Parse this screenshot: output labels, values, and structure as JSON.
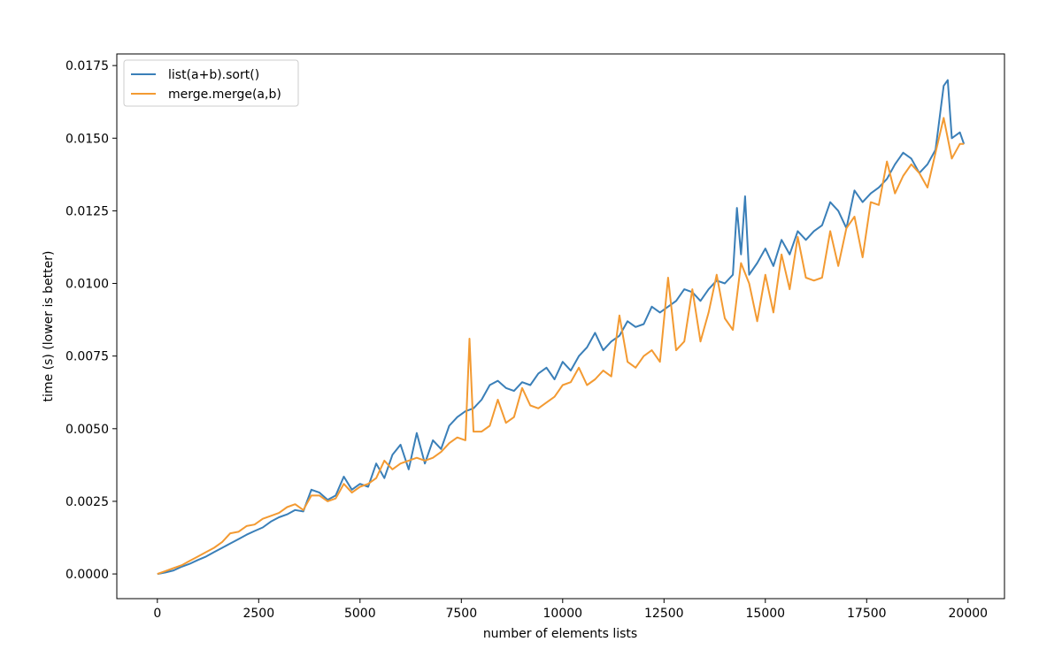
{
  "chart_data": {
    "type": "line",
    "title": "",
    "xlabel": "number of elements lists",
    "ylabel": "time (s) (lower is better)",
    "xlim": [
      -1000,
      20900
    ],
    "ylim": [
      -0.00085,
      0.0179
    ],
    "xticks": [
      0,
      2500,
      5000,
      7500,
      10000,
      12500,
      15000,
      17500,
      20000
    ],
    "xtick_labels": [
      "0",
      "2500",
      "5000",
      "7500",
      "10000",
      "12500",
      "15000",
      "17500",
      "20000"
    ],
    "yticks": [
      0,
      0.0025,
      0.005,
      0.0075,
      0.01,
      0.0125,
      0.015,
      0.0175
    ],
    "ytick_labels": [
      "0.0000",
      "0.0025",
      "0.0050",
      "0.0075",
      "0.0100",
      "0.0125",
      "0.0150",
      "0.0175"
    ],
    "grid": false,
    "legend_placement": "top-left",
    "series": [
      {
        "name": "list(a+b).sort()",
        "color": "#3a7fb8",
        "points": [
          [
            0,
            0
          ],
          [
            200,
            5e-05
          ],
          [
            400,
            0.00012
          ],
          [
            600,
            0.00025
          ],
          [
            800,
            0.00035
          ],
          [
            1000,
            0.00048
          ],
          [
            1200,
            0.0006
          ],
          [
            1400,
            0.00075
          ],
          [
            1600,
            0.0009
          ],
          [
            1800,
            0.00105
          ],
          [
            2000,
            0.0012
          ],
          [
            2200,
            0.00135
          ],
          [
            2400,
            0.00148
          ],
          [
            2600,
            0.0016
          ],
          [
            2800,
            0.0018
          ],
          [
            3000,
            0.00195
          ],
          [
            3200,
            0.00205
          ],
          [
            3400,
            0.0022
          ],
          [
            3600,
            0.00215
          ],
          [
            3800,
            0.0029
          ],
          [
            4000,
            0.0028
          ],
          [
            4200,
            0.00255
          ],
          [
            4400,
            0.0027
          ],
          [
            4600,
            0.00335
          ],
          [
            4800,
            0.0029
          ],
          [
            5000,
            0.0031
          ],
          [
            5200,
            0.003
          ],
          [
            5400,
            0.0038
          ],
          [
            5600,
            0.0033
          ],
          [
            5800,
            0.0041
          ],
          [
            6000,
            0.00445
          ],
          [
            6200,
            0.0036
          ],
          [
            6400,
            0.00485
          ],
          [
            6600,
            0.0038
          ],
          [
            6800,
            0.0046
          ],
          [
            7000,
            0.0043
          ],
          [
            7200,
            0.0051
          ],
          [
            7400,
            0.0054
          ],
          [
            7600,
            0.0056
          ],
          [
            7800,
            0.0057
          ],
          [
            8000,
            0.006
          ],
          [
            8200,
            0.0065
          ],
          [
            8400,
            0.00665
          ],
          [
            8600,
            0.0064
          ],
          [
            8800,
            0.0063
          ],
          [
            9000,
            0.0066
          ],
          [
            9200,
            0.0065
          ],
          [
            9400,
            0.0069
          ],
          [
            9600,
            0.0071
          ],
          [
            9800,
            0.0067
          ],
          [
            10000,
            0.0073
          ],
          [
            10200,
            0.007
          ],
          [
            10400,
            0.0075
          ],
          [
            10600,
            0.0078
          ],
          [
            10800,
            0.0083
          ],
          [
            11000,
            0.0077
          ],
          [
            11200,
            0.008
          ],
          [
            11400,
            0.0082
          ],
          [
            11600,
            0.0087
          ],
          [
            11800,
            0.0085
          ],
          [
            12000,
            0.0086
          ],
          [
            12200,
            0.0092
          ],
          [
            12400,
            0.009
          ],
          [
            12600,
            0.0092
          ],
          [
            12800,
            0.0094
          ],
          [
            13000,
            0.0098
          ],
          [
            13200,
            0.0097
          ],
          [
            13400,
            0.0094
          ],
          [
            13600,
            0.0098
          ],
          [
            13800,
            0.0101
          ],
          [
            14000,
            0.01
          ],
          [
            14200,
            0.0103
          ],
          [
            14300,
            0.0126
          ],
          [
            14400,
            0.011
          ],
          [
            14500,
            0.013
          ],
          [
            14600,
            0.0103
          ],
          [
            14800,
            0.0107
          ],
          [
            15000,
            0.0112
          ],
          [
            15200,
            0.0106
          ],
          [
            15400,
            0.0115
          ],
          [
            15600,
            0.011
          ],
          [
            15800,
            0.0118
          ],
          [
            16000,
            0.0115
          ],
          [
            16200,
            0.0118
          ],
          [
            16400,
            0.012
          ],
          [
            16600,
            0.0128
          ],
          [
            16800,
            0.0125
          ],
          [
            17000,
            0.0119
          ],
          [
            17200,
            0.0132
          ],
          [
            17400,
            0.0128
          ],
          [
            17600,
            0.0131
          ],
          [
            17800,
            0.0133
          ],
          [
            18000,
            0.0136
          ],
          [
            18200,
            0.0141
          ],
          [
            18400,
            0.0145
          ],
          [
            18600,
            0.0143
          ],
          [
            18800,
            0.0138
          ],
          [
            19000,
            0.0141
          ],
          [
            19200,
            0.0146
          ],
          [
            19400,
            0.0168
          ],
          [
            19500,
            0.017
          ],
          [
            19600,
            0.015
          ],
          [
            19800,
            0.0152
          ],
          [
            19900,
            0.0148
          ]
        ]
      },
      {
        "name": "merge.merge(a,b)",
        "color": "#f39a32",
        "points": [
          [
            0,
            0
          ],
          [
            200,
            0.0001
          ],
          [
            400,
            0.0002
          ],
          [
            600,
            0.0003
          ],
          [
            800,
            0.00045
          ],
          [
            1000,
            0.0006
          ],
          [
            1200,
            0.00075
          ],
          [
            1400,
            0.0009
          ],
          [
            1600,
            0.0011
          ],
          [
            1800,
            0.0014
          ],
          [
            2000,
            0.00145
          ],
          [
            2200,
            0.00165
          ],
          [
            2400,
            0.0017
          ],
          [
            2600,
            0.0019
          ],
          [
            2800,
            0.002
          ],
          [
            3000,
            0.0021
          ],
          [
            3200,
            0.0023
          ],
          [
            3400,
            0.0024
          ],
          [
            3600,
            0.0022
          ],
          [
            3800,
            0.0027
          ],
          [
            4000,
            0.0027
          ],
          [
            4200,
            0.0025
          ],
          [
            4400,
            0.0026
          ],
          [
            4600,
            0.0031
          ],
          [
            4800,
            0.0028
          ],
          [
            5000,
            0.003
          ],
          [
            5200,
            0.0031
          ],
          [
            5400,
            0.0033
          ],
          [
            5600,
            0.0039
          ],
          [
            5800,
            0.0036
          ],
          [
            6000,
            0.0038
          ],
          [
            6200,
            0.0039
          ],
          [
            6400,
            0.004
          ],
          [
            6600,
            0.0039
          ],
          [
            6800,
            0.004
          ],
          [
            7000,
            0.0042
          ],
          [
            7200,
            0.0045
          ],
          [
            7400,
            0.0047
          ],
          [
            7600,
            0.0046
          ],
          [
            7700,
            0.0081
          ],
          [
            7800,
            0.0049
          ],
          [
            8000,
            0.0049
          ],
          [
            8200,
            0.0051
          ],
          [
            8400,
            0.006
          ],
          [
            8600,
            0.0052
          ],
          [
            8800,
            0.0054
          ],
          [
            9000,
            0.0064
          ],
          [
            9200,
            0.0058
          ],
          [
            9400,
            0.0057
          ],
          [
            9600,
            0.0059
          ],
          [
            9800,
            0.0061
          ],
          [
            10000,
            0.0065
          ],
          [
            10200,
            0.0066
          ],
          [
            10400,
            0.0071
          ],
          [
            10600,
            0.0065
          ],
          [
            10800,
            0.0067
          ],
          [
            11000,
            0.007
          ],
          [
            11200,
            0.0068
          ],
          [
            11400,
            0.0089
          ],
          [
            11600,
            0.0073
          ],
          [
            11800,
            0.0071
          ],
          [
            12000,
            0.0075
          ],
          [
            12200,
            0.0077
          ],
          [
            12400,
            0.0073
          ],
          [
            12600,
            0.0102
          ],
          [
            12800,
            0.0077
          ],
          [
            13000,
            0.008
          ],
          [
            13200,
            0.0098
          ],
          [
            13400,
            0.008
          ],
          [
            13600,
            0.009
          ],
          [
            13800,
            0.0103
          ],
          [
            14000,
            0.0088
          ],
          [
            14200,
            0.0084
          ],
          [
            14400,
            0.0107
          ],
          [
            14600,
            0.01
          ],
          [
            14800,
            0.0087
          ],
          [
            15000,
            0.0103
          ],
          [
            15200,
            0.009
          ],
          [
            15400,
            0.011
          ],
          [
            15600,
            0.0098
          ],
          [
            15800,
            0.0116
          ],
          [
            16000,
            0.0102
          ],
          [
            16200,
            0.0101
          ],
          [
            16400,
            0.0102
          ],
          [
            16600,
            0.0118
          ],
          [
            16800,
            0.0106
          ],
          [
            17000,
            0.0119
          ],
          [
            17200,
            0.0123
          ],
          [
            17400,
            0.0109
          ],
          [
            17600,
            0.0128
          ],
          [
            17800,
            0.0127
          ],
          [
            18000,
            0.0142
          ],
          [
            18200,
            0.0131
          ],
          [
            18400,
            0.0137
          ],
          [
            18600,
            0.0141
          ],
          [
            18800,
            0.0138
          ],
          [
            19000,
            0.0133
          ],
          [
            19200,
            0.0145
          ],
          [
            19400,
            0.0157
          ],
          [
            19600,
            0.0143
          ],
          [
            19800,
            0.0148
          ],
          [
            19900,
            0.0148
          ]
        ]
      }
    ]
  }
}
